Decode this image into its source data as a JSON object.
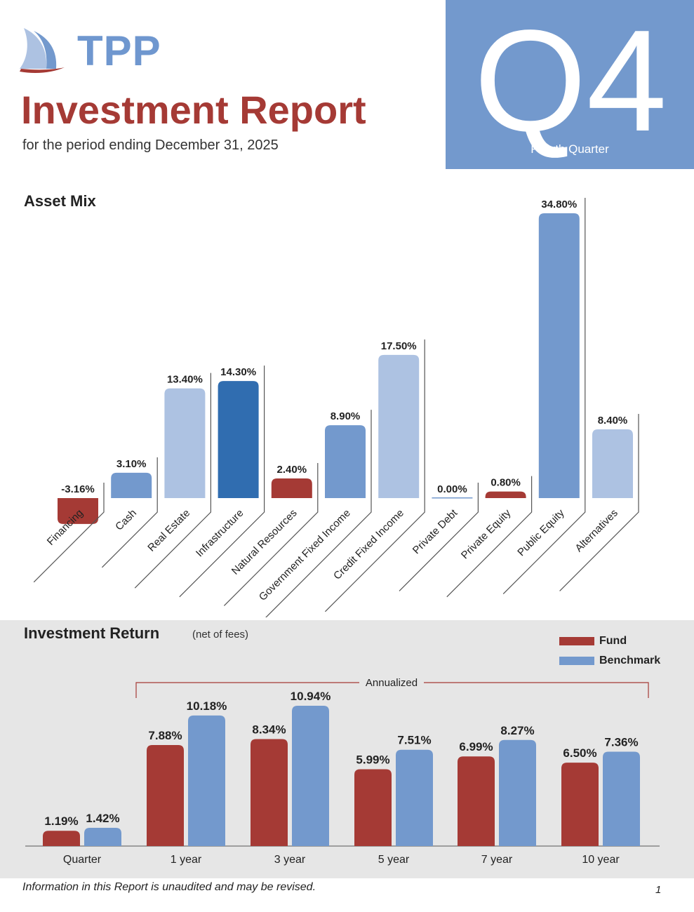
{
  "header": {
    "logo_text": "TPP",
    "title": "Investment Report",
    "subtitle": "for the period ending December 31, 2025",
    "quarter_badge": "Q4",
    "quarter_label": "Fourth Quarter"
  },
  "colors": {
    "brand_red": "#a53a35",
    "brand_blue": "#7399cd",
    "dark_blue": "#306db0",
    "light_blue": "#adc2e2",
    "panel_gray": "#e6e6e6"
  },
  "asset_mix": {
    "heading": "Asset Mix"
  },
  "investment_return": {
    "heading": "Investment Return",
    "note": "(net of fees)",
    "annualized_label": "Annualized",
    "legend": [
      "Fund",
      "Benchmark"
    ]
  },
  "chart_data": [
    {
      "type": "bar",
      "title": "Asset Mix",
      "categories": [
        "Financing",
        "Cash",
        "Real Estate",
        "Infrastructure",
        "Natural Resources",
        "Government Fixed Income",
        "Credit Fixed Income",
        "Private Debt",
        "Private Equity",
        "Public Equity",
        "Alternatives"
      ],
      "values": [
        -3.16,
        3.1,
        13.4,
        14.3,
        2.4,
        8.9,
        17.5,
        0.0,
        0.8,
        34.8,
        8.4
      ],
      "value_labels": [
        "-3.16%",
        "3.10%",
        "13.40%",
        "14.30%",
        "2.40%",
        "8.90%",
        "17.50%",
        "0.00%",
        "0.80%",
        "34.80%",
        "8.40%"
      ],
      "bar_colors": [
        "#a53a35",
        "#7399cd",
        "#adc2e2",
        "#306db0",
        "#a53a35",
        "#7399cd",
        "#adc2e2",
        "#7399cd",
        "#a53a35",
        "#7399cd",
        "#adc2e2"
      ],
      "ylim": [
        -3.16,
        34.8
      ]
    },
    {
      "type": "bar",
      "title": "Investment Return",
      "categories": [
        "Quarter",
        "1 year",
        "3 year",
        "5 year",
        "7 year",
        "10 year"
      ],
      "series": [
        {
          "name": "Fund",
          "color": "#a53a35",
          "values": [
            1.19,
            7.88,
            8.34,
            5.99,
            6.99,
            6.5
          ],
          "labels": [
            "1.19%",
            "7.88%",
            "8.34%",
            "5.99%",
            "6.99%",
            "6.50%"
          ]
        },
        {
          "name": "Benchmark",
          "color": "#7399cd",
          "values": [
            1.42,
            10.18,
            10.94,
            7.51,
            8.27,
            7.36
          ],
          "labels": [
            "1.42%",
            "10.18%",
            "10.94%",
            "7.51%",
            "8.27%",
            "7.36%"
          ]
        }
      ],
      "ylim": [
        0,
        10.94
      ],
      "legend_position": "top-right"
    }
  ],
  "footer": {
    "disclaimer": "Information in this Report is unaudited and may be revised.",
    "page_number": "1"
  }
}
